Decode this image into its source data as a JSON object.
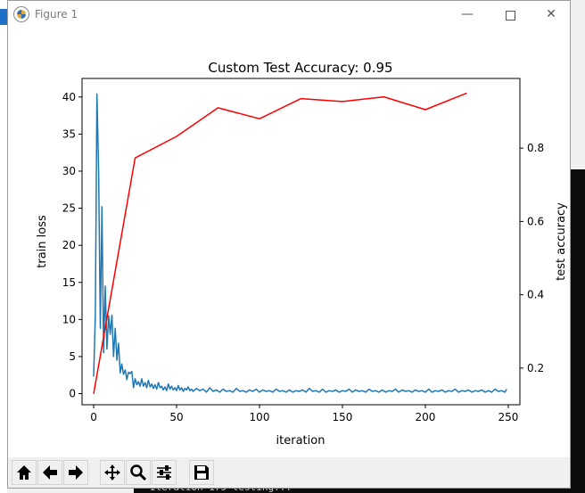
{
  "window": {
    "title": "Figure 1",
    "minimize_glyph": "—",
    "close_glyph": "✕"
  },
  "background": {
    "terminal_text": "Iteration 175 testing..."
  },
  "toolbar": {
    "buttons": [
      {
        "name": "home-button",
        "icon": "home-icon"
      },
      {
        "name": "back-button",
        "icon": "arrow-left-icon"
      },
      {
        "name": "forward-button",
        "icon": "arrow-right-icon"
      },
      {
        "name": "pan-button",
        "icon": "move-icon"
      },
      {
        "name": "zoom-button",
        "icon": "magnifier-icon"
      },
      {
        "name": "configure-subplots-button",
        "icon": "sliders-icon"
      },
      {
        "name": "save-button",
        "icon": "floppy-disk-icon"
      }
    ]
  },
  "chart_data": {
    "type": "line",
    "title": "Custom Test Accuracy: 0.95",
    "xlabel": "iteration",
    "ylabel": "train loss",
    "ylabel_right": "test accuracy",
    "xlim": [
      -7,
      257
    ],
    "ylim": [
      -1.5,
      42.5
    ],
    "ylim_right": [
      0.1,
      0.99
    ],
    "xticks": [
      0,
      50,
      100,
      150,
      200,
      250
    ],
    "yticks": [
      0,
      5,
      10,
      15,
      20,
      25,
      30,
      35,
      40
    ],
    "yticks_right": [
      0.2,
      0.4,
      0.6,
      0.8
    ],
    "grid": false,
    "series": [
      {
        "color": "#1f77b4",
        "axis": "left",
        "x": [
          0,
          1,
          2,
          3,
          4,
          5,
          6,
          7,
          8,
          9,
          10,
          11,
          12,
          13,
          14,
          15,
          16,
          17,
          18,
          19,
          20,
          21,
          22,
          23,
          24,
          25,
          26,
          27,
          28,
          29,
          30,
          31,
          32,
          33,
          34,
          35,
          36,
          37,
          38,
          39,
          40,
          41,
          42,
          43,
          44,
          45,
          46,
          47,
          48,
          49,
          50,
          51,
          52,
          53,
          54,
          55,
          56,
          57,
          58,
          59,
          60,
          62,
          64,
          66,
          68,
          70,
          72,
          74,
          76,
          78,
          80,
          82,
          84,
          86,
          88,
          90,
          92,
          94,
          96,
          98,
          100,
          102,
          104,
          106,
          108,
          110,
          112,
          114,
          116,
          118,
          120,
          122,
          124,
          126,
          128,
          130,
          132,
          134,
          136,
          138,
          140,
          142,
          144,
          146,
          148,
          150,
          152,
          154,
          156,
          158,
          160,
          162,
          164,
          166,
          168,
          170,
          172,
          174,
          176,
          178,
          180,
          182,
          184,
          186,
          188,
          190,
          192,
          194,
          196,
          198,
          200,
          202,
          204,
          206,
          208,
          210,
          212,
          214,
          216,
          218,
          220,
          222,
          224,
          226,
          228,
          230,
          232,
          234,
          236,
          238,
          240,
          242,
          244,
          246,
          248,
          249
        ],
        "y": [
          2.3,
          10.5,
          40.4,
          30.0,
          8.8,
          25.2,
          5.5,
          14.5,
          6.0,
          10.5,
          8.0,
          10.6,
          5.0,
          8.8,
          4.5,
          6.8,
          2.8,
          4.0,
          2.6,
          3.2,
          1.9,
          2.9,
          2.7,
          3.0,
          0.8,
          2.0,
          1.2,
          1.6,
          1.0,
          2.0,
          1.0,
          1.5,
          0.8,
          1.8,
          0.9,
          1.3,
          0.7,
          1.2,
          0.6,
          1.5,
          0.8,
          1.0,
          0.5,
          0.9,
          0.4,
          1.3,
          0.6,
          1.0,
          0.5,
          0.8,
          0.4,
          1.1,
          0.5,
          0.8,
          0.3,
          0.7,
          0.5,
          0.9,
          0.4,
          0.6,
          0.3,
          0.7,
          0.4,
          0.6,
          0.2,
          0.8,
          0.3,
          0.5,
          0.2,
          0.6,
          0.3,
          0.4,
          0.2,
          0.7,
          0.3,
          0.4,
          0.2,
          0.5,
          0.3,
          0.6,
          0.2,
          0.5,
          0.3,
          0.4,
          0.2,
          0.6,
          0.3,
          0.4,
          0.2,
          0.5,
          0.2,
          0.4,
          0.3,
          0.5,
          0.2,
          0.7,
          0.3,
          0.4,
          0.2,
          0.6,
          0.2,
          0.4,
          0.3,
          0.5,
          0.2,
          0.4,
          0.3,
          0.6,
          0.2,
          0.5,
          0.3,
          0.4,
          0.2,
          0.6,
          0.3,
          0.4,
          0.2,
          0.5,
          0.2,
          0.4,
          0.3,
          0.6,
          0.2,
          0.5,
          0.3,
          0.4,
          0.2,
          0.5,
          0.3,
          0.4,
          0.2,
          0.6,
          0.2,
          0.4,
          0.3,
          0.5,
          0.2,
          0.4,
          0.3,
          0.6,
          0.2,
          0.4,
          0.3,
          0.5,
          0.2,
          0.4,
          0.3,
          0.5,
          0.2,
          0.4,
          0.2,
          0.6,
          0.3,
          0.4,
          0.2,
          0.6
        ]
      },
      {
        "color": "#ff0000",
        "axis": "right",
        "x": [
          0,
          25,
          50,
          75,
          100,
          125,
          150,
          175,
          200,
          225
        ],
        "y": [
          0.13,
          0.773,
          0.832,
          0.91,
          0.88,
          0.935,
          0.927,
          0.94,
          0.905,
          0.95
        ]
      }
    ]
  }
}
